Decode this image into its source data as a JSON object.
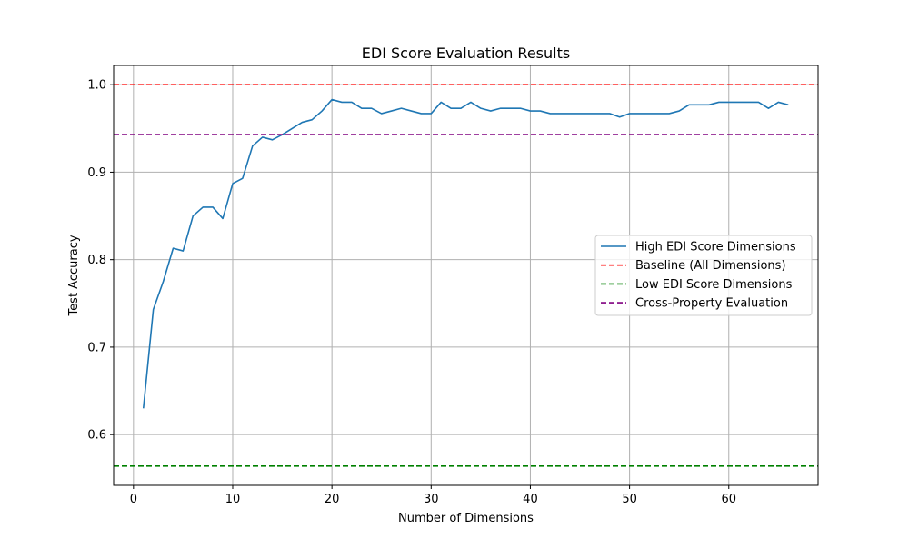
{
  "chart_data": {
    "type": "line",
    "title": "EDI Score Evaluation Results",
    "xlabel": "Number of Dimensions",
    "ylabel": "Test Accuracy",
    "xlim": [
      -2,
      69
    ],
    "ylim": [
      0.542,
      1.022
    ],
    "xticks": [
      0,
      10,
      20,
      30,
      40,
      50,
      60
    ],
    "yticks": [
      0.6,
      0.7,
      0.8,
      0.9,
      1.0
    ],
    "ytick_labels": [
      "0.6",
      "0.7",
      "0.8",
      "0.9",
      "1.0"
    ],
    "grid": true,
    "legend_position": "center-right",
    "series": [
      {
        "name": "High EDI Score Dimensions",
        "style": "solid",
        "color": "#1f77b4",
        "x": [
          1,
          2,
          3,
          4,
          5,
          6,
          7,
          8,
          9,
          10,
          11,
          12,
          13,
          14,
          15,
          16,
          17,
          18,
          19,
          20,
          21,
          22,
          23,
          24,
          25,
          26,
          27,
          28,
          29,
          30,
          31,
          32,
          33,
          34,
          35,
          36,
          37,
          38,
          39,
          40,
          41,
          42,
          43,
          44,
          45,
          46,
          47,
          48,
          49,
          50,
          51,
          52,
          53,
          54,
          55,
          56,
          57,
          58,
          59,
          60,
          61,
          62,
          63,
          64,
          65,
          66
        ],
        "y": [
          0.63,
          0.743,
          0.775,
          0.813,
          0.81,
          0.85,
          0.86,
          0.86,
          0.847,
          0.887,
          0.893,
          0.93,
          0.94,
          0.937,
          0.943,
          0.95,
          0.957,
          0.96,
          0.97,
          0.983,
          0.98,
          0.98,
          0.973,
          0.973,
          0.967,
          0.97,
          0.973,
          0.97,
          0.967,
          0.967,
          0.98,
          0.973,
          0.973,
          0.98,
          0.973,
          0.97,
          0.973,
          0.973,
          0.973,
          0.97,
          0.97,
          0.967,
          0.967,
          0.967,
          0.967,
          0.967,
          0.967,
          0.967,
          0.963,
          0.967,
          0.967,
          0.967,
          0.967,
          0.967,
          0.97,
          0.977,
          0.977,
          0.977,
          0.98,
          0.98,
          0.98,
          0.98,
          0.98,
          0.973,
          0.98,
          0.977
        ]
      },
      {
        "name": "Baseline (All Dimensions)",
        "style": "dashed",
        "color": "#ff0000",
        "y_constant": 1.0
      },
      {
        "name": "Low EDI Score Dimensions",
        "style": "dashed",
        "color": "#008000",
        "y_constant": 0.564
      },
      {
        "name": "Cross-Property Evaluation",
        "style": "dashed",
        "color": "#800080",
        "y_constant": 0.943
      }
    ]
  }
}
